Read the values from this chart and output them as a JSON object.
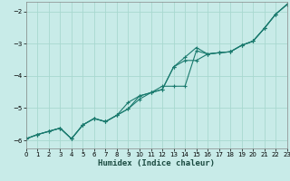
{
  "xlabel": "Humidex (Indice chaleur)",
  "bg_color": "#c8ebe8",
  "grid_color": "#a8d8d0",
  "line_color": "#1a7a6e",
  "xlim": [
    0,
    23
  ],
  "ylim": [
    -6.25,
    -1.7
  ],
  "xticks": [
    0,
    1,
    2,
    3,
    4,
    5,
    6,
    7,
    8,
    9,
    10,
    11,
    12,
    13,
    14,
    15,
    16,
    17,
    18,
    19,
    20,
    21,
    22,
    23
  ],
  "yticks": [
    -6,
    -5,
    -4,
    -3,
    -2
  ],
  "series_x": [
    0,
    1,
    2,
    3,
    4,
    5,
    6,
    7,
    8,
    9,
    10,
    11,
    12,
    13,
    14,
    15,
    16,
    17,
    18,
    19,
    20,
    21,
    22,
    23
  ],
  "series": [
    [
      -5.95,
      -5.82,
      -5.72,
      -5.62,
      -5.95,
      -5.52,
      -5.32,
      -5.42,
      -5.22,
      -4.82,
      -4.62,
      -4.52,
      -4.42,
      -3.72,
      -3.42,
      -3.12,
      -3.32,
      -3.28,
      -3.25,
      -3.05,
      -2.92,
      -2.52,
      -2.08,
      -1.78
    ],
    [
      -5.95,
      -5.82,
      -5.72,
      -5.62,
      -5.95,
      -5.52,
      -5.32,
      -5.42,
      -5.22,
      -5.02,
      -4.62,
      -4.52,
      -4.32,
      -4.32,
      -4.32,
      -3.22,
      -3.32,
      -3.28,
      -3.25,
      -3.05,
      -2.92,
      -2.52,
      -2.08,
      -1.78
    ],
    [
      -5.95,
      -5.82,
      -5.72,
      -5.62,
      -5.95,
      -5.52,
      -5.32,
      -5.42,
      -5.22,
      -5.02,
      -4.72,
      -4.52,
      -4.42,
      -3.72,
      -3.52,
      -3.52,
      -3.32,
      -3.28,
      -3.25,
      -3.05,
      -2.92,
      -2.52,
      -2.08,
      -1.78
    ]
  ]
}
